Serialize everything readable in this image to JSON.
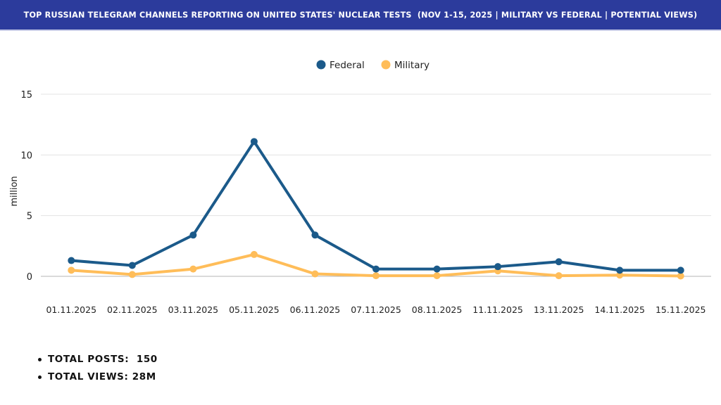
{
  "header": {
    "title": "TOP RUSSIAN TELEGRAM CHANNELS REPORTING ON UNITED STATES' NUCLEAR TESTS  (NOV 1-15, 2025 | MILITARY VS FEDERAL | POTENTIAL VIEWS)"
  },
  "colors": {
    "header_bg": "#2c3b9c",
    "federal": "#1b5a8a",
    "military": "#ffbd59"
  },
  "chart_data": {
    "type": "line",
    "title": "",
    "xlabel": "",
    "ylabel": "million",
    "ylim": [
      0,
      15
    ],
    "yticks": [
      0,
      5,
      10,
      15
    ],
    "grid": true,
    "legend_position": "top-center",
    "categories": [
      "01.11.2025",
      "02.11.2025",
      "03.11.2025",
      "05.11.2025",
      "06.11.2025",
      "07.11.2025",
      "08.11.2025",
      "11.11.2025",
      "13.11.2025",
      "14.11.2025",
      "15.11.2025"
    ],
    "series": [
      {
        "name": "Federal",
        "values": [
          1.3,
          0.9,
          3.4,
          11.1,
          3.4,
          0.6,
          0.6,
          0.8,
          1.2,
          0.5,
          0.5
        ]
      },
      {
        "name": "Military",
        "values": [
          0.5,
          0.15,
          0.6,
          1.8,
          0.2,
          0.05,
          0.05,
          0.45,
          0.05,
          0.1,
          0.03
        ]
      }
    ]
  },
  "summary": [
    {
      "text": "TOTAL POSTS:  150"
    },
    {
      "text": "TOTAL VIEWS: 28M"
    }
  ]
}
